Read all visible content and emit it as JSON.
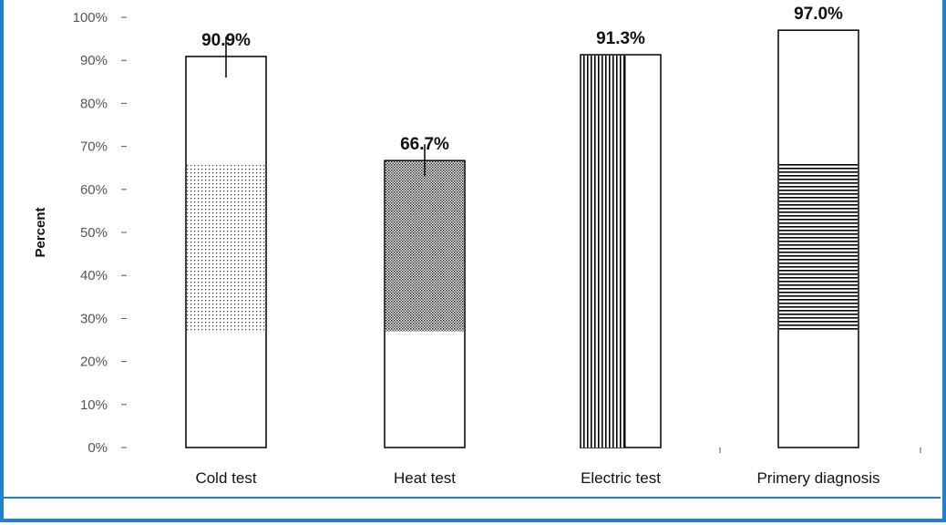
{
  "chart_data": {
    "type": "bar",
    "title": "",
    "ylabel": "Percent",
    "xlabel": "",
    "ylim": [
      0,
      100
    ],
    "yticks": [
      "0%",
      "10%",
      "20%",
      "30%",
      "40%",
      "50%",
      "60%",
      "70%",
      "80%",
      "90%",
      "100%"
    ],
    "categories": [
      "Cold test",
      "Heat test",
      "Electric test",
      "Primery diagnosis"
    ],
    "values": [
      90.9,
      66.7,
      91.3,
      97.0
    ],
    "value_labels": [
      "90.9%",
      "66.7%",
      "91.3%",
      "97.0%"
    ],
    "patterned_band": [
      {
        "from": 27,
        "to": 66,
        "pattern": "fine-dots"
      },
      {
        "from": 27,
        "to": 67,
        "pattern": "dense-crosshatch"
      },
      {
        "from": 0,
        "to": 91.3,
        "pattern": "vertical-lines",
        "portion": "left-half"
      },
      {
        "from": 27,
        "to": 66,
        "pattern": "horizontal-lines"
      }
    ],
    "error_bars": [
      [
        86.0,
        95.5
      ],
      [
        63.0,
        70.5
      ],
      null,
      null
    ],
    "grid": false,
    "colors": {
      "bar_fill": "#ffffff",
      "bar_stroke": "#000000",
      "frame": "#1f7fd0"
    }
  }
}
